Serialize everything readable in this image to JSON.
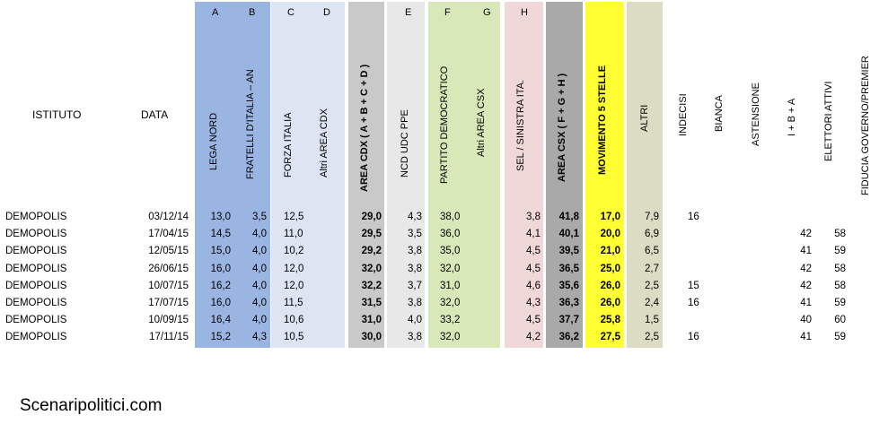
{
  "headers": {
    "istituto": "ISTITUTO",
    "data": "DATA",
    "col_letters": [
      "A",
      "B",
      "C",
      "D",
      "E",
      "F",
      "G",
      "H"
    ],
    "lega_nord": "LEGA NORD",
    "fratelli": "FRATELLI D'ITALIA – AN",
    "forza_italia": "FORZA ITALIA",
    "altri_cdx": "Altri AREA CDX",
    "area_cdx": "AREA CDX   ( A + B + C + D )",
    "ncd": "NCD UDC PPE",
    "pd": "PARTITO DEMOCRATICO",
    "altri_csx": "Altri AREA CSX",
    "sel": "SEL / SINISTRA ITA.",
    "area_csx": "AREA CSX   ( F + G + H )",
    "m5s": "MOVIMENTO 5 STELLE",
    "altri": "ALTRI",
    "indecisi": "INDECISI",
    "bianca": "BIANCA",
    "astensione": "ASTENSIONE",
    "ibA": "I + B + A",
    "elettori": "ELETTORI ATTIVI",
    "fiducia": "FIDUCIA GOVERNO/PREMIER"
  },
  "colors": {
    "blue": "#9bb5e2",
    "lightblue": "#dde5f3",
    "gray": "#c9c9c9",
    "lightgray": "#e8e8e8",
    "green": "#d8e8b8",
    "pink": "#f0d8d8",
    "darkgray": "#a9a9a9",
    "yellow": "#ffff33",
    "olive": "#dcdcc4"
  },
  "rows": [
    {
      "ist": "DEMOPOLIS",
      "data": "03/12/14",
      "a": "13,0",
      "b": "3,5",
      "c": "12,5",
      "d": "",
      "cdx": "29,0",
      "e": "4,3",
      "f": "38,0",
      "g": "",
      "h": "3,8",
      "csx": "41,8",
      "m5s": "17,0",
      "altri": "7,9",
      "ind": "16",
      "bia": "",
      "ast": "",
      "iba": "",
      "el1": "",
      "el2": ""
    },
    {
      "ist": "DEMOPOLIS",
      "data": "17/04/15",
      "a": "14,5",
      "b": "4,0",
      "c": "11,0",
      "d": "",
      "cdx": "29,5",
      "e": "3,5",
      "f": "36,0",
      "g": "",
      "h": "4,1",
      "csx": "40,1",
      "m5s": "20,0",
      "altri": "6,9",
      "ind": "",
      "bia": "",
      "ast": "",
      "iba": "",
      "el1": "42",
      "el2": "58"
    },
    {
      "ist": "DEMOPOLIS",
      "data": "12/05/15",
      "a": "15,0",
      "b": "4,0",
      "c": "10,2",
      "d": "",
      "cdx": "29,2",
      "e": "3,8",
      "f": "35,0",
      "g": "",
      "h": "4,5",
      "csx": "39,5",
      "m5s": "21,0",
      "altri": "6,5",
      "ind": "",
      "bia": "",
      "ast": "",
      "iba": "",
      "el1": "41",
      "el2": "59"
    },
    {
      "ist": "DEMOPOLIS",
      "data": "26/06/15",
      "a": "16,0",
      "b": "4,0",
      "c": "12,0",
      "d": "",
      "cdx": "32,0",
      "e": "3,8",
      "f": "32,0",
      "g": "",
      "h": "4,5",
      "csx": "36,5",
      "m5s": "25,0",
      "altri": "2,7",
      "ind": "",
      "bia": "",
      "ast": "",
      "iba": "",
      "el1": "42",
      "el2": "58"
    },
    {
      "ist": "DEMOPOLIS",
      "data": "10/07/15",
      "a": "16,2",
      "b": "4,0",
      "c": "12,0",
      "d": "",
      "cdx": "32,2",
      "e": "3,7",
      "f": "31,0",
      "g": "",
      "h": "4,6",
      "csx": "35,6",
      "m5s": "26,0",
      "altri": "2,5",
      "ind": "15",
      "bia": "",
      "ast": "",
      "iba": "",
      "el1": "42",
      "el2": "58"
    },
    {
      "ist": "DEMOPOLIS",
      "data": "17/07/15",
      "a": "16,0",
      "b": "4,0",
      "c": "11,5",
      "d": "",
      "cdx": "31,5",
      "e": "3,8",
      "f": "32,0",
      "g": "",
      "h": "4,3",
      "csx": "36,3",
      "m5s": "26,0",
      "altri": "2,4",
      "ind": "16",
      "bia": "",
      "ast": "",
      "iba": "",
      "el1": "41",
      "el2": "59"
    },
    {
      "ist": "DEMOPOLIS",
      "data": "10/09/15",
      "a": "16,4",
      "b": "4,0",
      "c": "10,6",
      "d": "",
      "cdx": "31,0",
      "e": "4,0",
      "f": "33,2",
      "g": "",
      "h": "4,5",
      "csx": "37,7",
      "m5s": "25,8",
      "altri": "1,5",
      "ind": "",
      "bia": "",
      "ast": "",
      "iba": "",
      "el1": "40",
      "el2": "60"
    },
    {
      "ist": "DEMOPOLIS",
      "data": "17/11/15",
      "a": "15,2",
      "b": "4,3",
      "c": "10,5",
      "d": "",
      "cdx": "30,0",
      "e": "3,8",
      "f": "32,0",
      "g": "",
      "h": "4,2",
      "csx": "36,2",
      "m5s": "27,5",
      "altri": "2,5",
      "ind": "16",
      "bia": "",
      "ast": "",
      "iba": "",
      "el1": "41",
      "el2": "59"
    }
  ],
  "footer": "Scenaripolitici.com"
}
